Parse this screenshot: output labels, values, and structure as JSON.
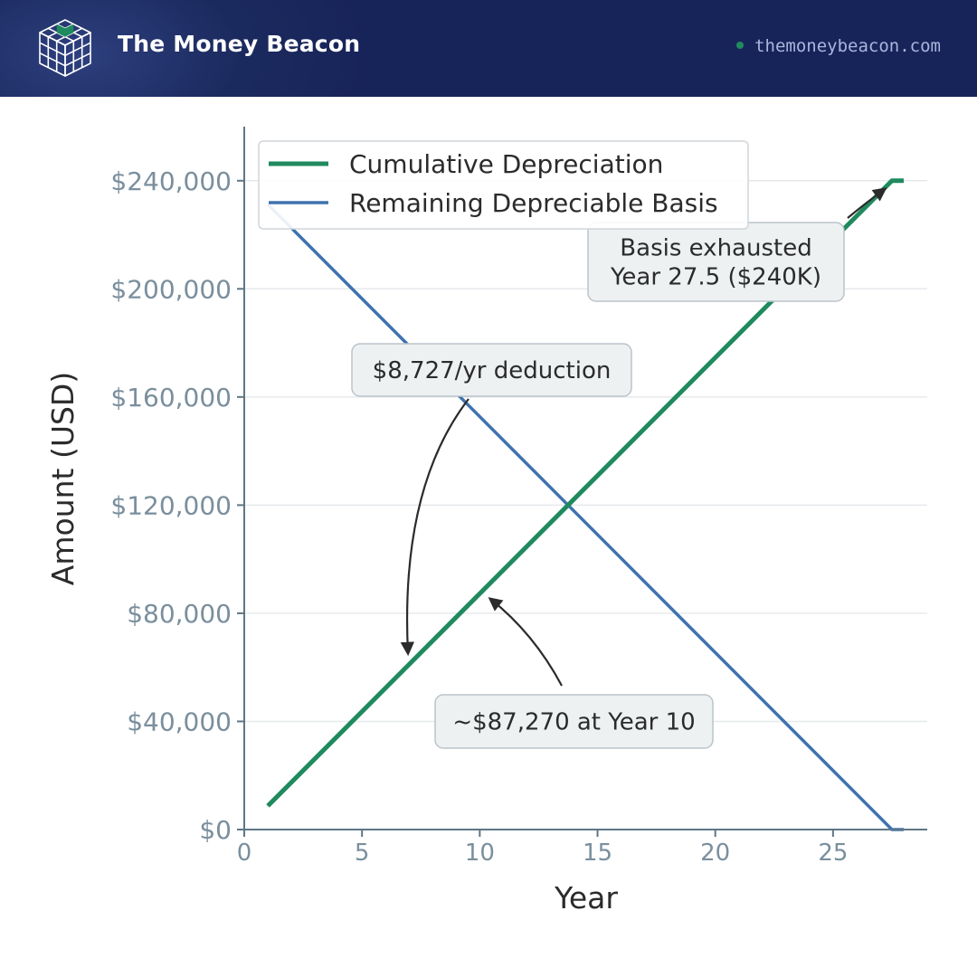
{
  "header": {
    "brand": "The Money Beacon",
    "site": "themoneybeacon.com",
    "accent_color": "#1f8a5e",
    "background_color": "#1b2a5e",
    "logo_icon": "cube-grid-logo-icon"
  },
  "chart_data": {
    "type": "line",
    "title": "",
    "xlabel": "Year",
    "ylabel": "Amount (USD)",
    "xlim": [
      0,
      29
    ],
    "ylim": [
      0,
      260000
    ],
    "xticks": [
      0,
      5,
      10,
      15,
      20,
      25
    ],
    "yticks": [
      0,
      40000,
      80000,
      120000,
      160000,
      200000,
      240000
    ],
    "ytick_labels": [
      "$0",
      "$40,000",
      "$80,000",
      "$120,000",
      "$160,000",
      "$200,000",
      "$240,000"
    ],
    "grid": "horizontal",
    "legend_position": "top-left",
    "series": [
      {
        "name": "Cumulative Depreciation",
        "color": "#1f8a5e",
        "x": [
          1,
          27.5,
          28
        ],
        "y": [
          8727,
          240000,
          240000
        ]
      },
      {
        "name": "Remaining Depreciable Basis",
        "color": "#3f72af",
        "x": [
          1,
          27.5,
          28
        ],
        "y": [
          231273,
          0,
          0
        ]
      }
    ],
    "annotations": [
      {
        "text": [
          "Basis exhausted",
          "Year 27.5 ($240K)"
        ],
        "target": [
          27,
          235000
        ]
      },
      {
        "text": [
          "$8,727/yr deduction"
        ],
        "target": [
          7,
          65000
        ]
      },
      {
        "text": [
          "~$87,270 at Year 10"
        ],
        "target": [
          10.5,
          85000
        ]
      }
    ]
  }
}
